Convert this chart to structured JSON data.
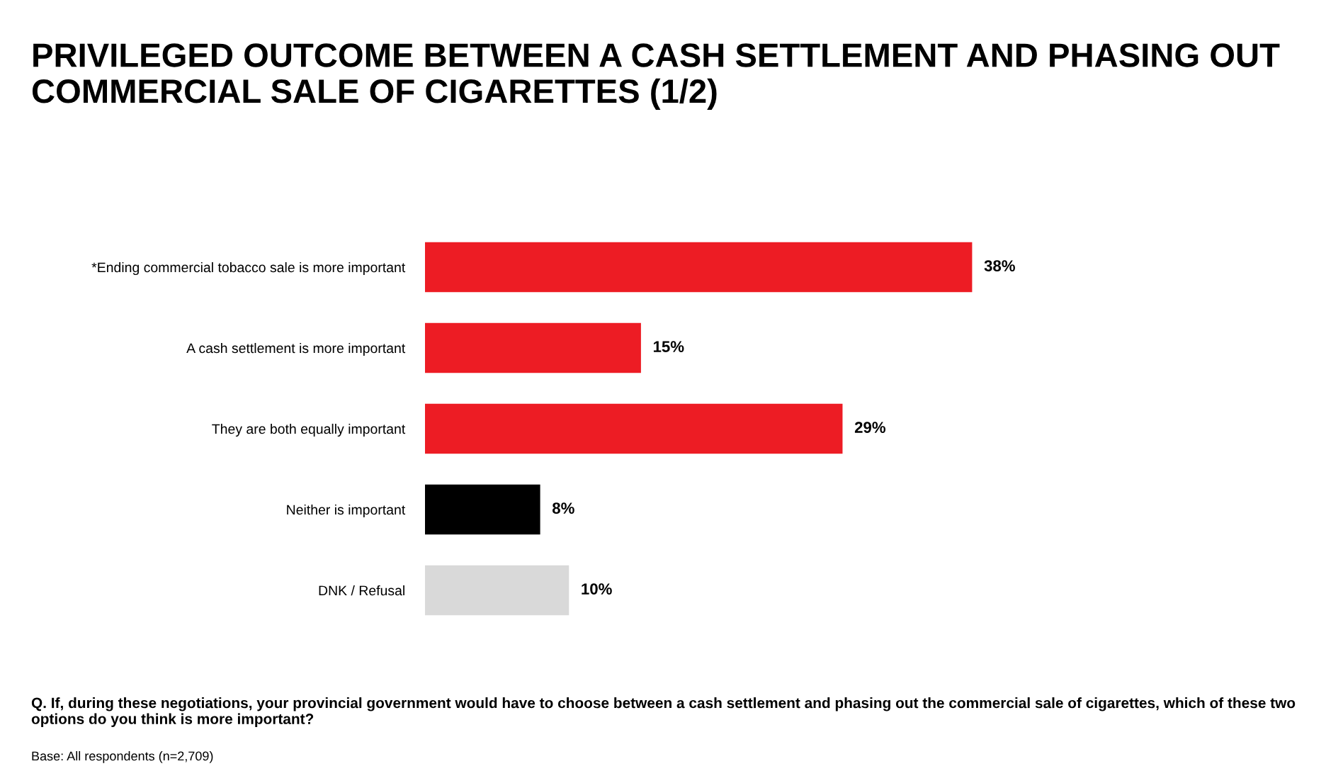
{
  "chart_data": {
    "type": "bar",
    "orientation": "horizontal",
    "title": "PRIVILEGED OUTCOME BETWEEN A CASH SETTLEMENT AND PHASING OUT COMMERCIAL SALE OF CIGARETTES (1/2)",
    "categories": [
      "*Ending commercial tobacco sale is more important",
      "A cash settlement is more important",
      "They are both equally important",
      "Neither is important",
      "DNK / Refusal"
    ],
    "values": [
      38,
      15,
      29,
      8,
      10
    ],
    "colors": [
      "#ed1c24",
      "#ed1c24",
      "#ed1c24",
      "#000000",
      "#d9d9d9"
    ],
    "value_labels": [
      "38%",
      "15%",
      "29%",
      "8%",
      "10%"
    ],
    "annotations": [
      "Q. If, during these negotiations, your provincial government would have to choose between a cash settlement and phasing out the commercial sale of cigarettes, which of these two options do you think is more important?",
      "Base: All respondents (n=2,709)"
    ],
    "grid": false,
    "legend": false
  }
}
